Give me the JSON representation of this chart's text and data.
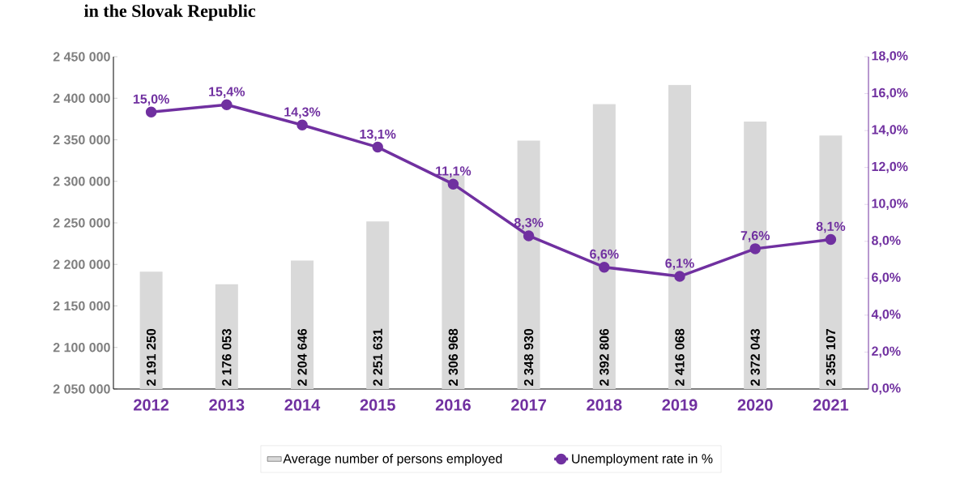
{
  "chart_data": {
    "type": "bar",
    "title": "in the Slovak Republic",
    "categories": [
      "2012",
      "2013",
      "2014",
      "2015",
      "2016",
      "2017",
      "2018",
      "2019",
      "2020",
      "2021"
    ],
    "series": [
      {
        "name": "Average number of persons employed",
        "color": "#d9d9d9",
        "values": [
          2191250,
          2176053,
          2204646,
          2251631,
          2306968,
          2348930,
          2392806,
          2416068,
          2372043,
          2355107
        ],
        "value_labels": [
          "2 191 250",
          "2 176 053",
          "2 204 646",
          "2 251 631",
          "2 306 968",
          "2 348 930",
          "2 392 806",
          "2 416 068",
          "2 372 043",
          "2 355 107"
        ]
      },
      {
        "name": "Unemployment rate in %",
        "type": "line",
        "axis": "y2",
        "color": "#7030a0",
        "values": [
          15.0,
          15.4,
          14.3,
          13.1,
          11.1,
          8.3,
          6.6,
          6.1,
          7.6,
          8.1
        ],
        "value_labels": [
          "15,0%",
          "15,4%",
          "14,3%",
          "13,1%",
          "11,1%",
          "8,3%",
          "6,6%",
          "6,1%",
          "7,6%",
          "8,1%"
        ]
      }
    ],
    "ylim": [
      2050000,
      2450000
    ],
    "yticks": [
      {
        "value": 2050000,
        "label": "2 050 000"
      },
      {
        "value": 2100000,
        "label": "2 100 000"
      },
      {
        "value": 2150000,
        "label": "2 150 000"
      },
      {
        "value": 2200000,
        "label": "2 200 000"
      },
      {
        "value": 2250000,
        "label": "2 250 000"
      },
      {
        "value": 2300000,
        "label": "2 300 000"
      },
      {
        "value": 2350000,
        "label": "2 350 000"
      },
      {
        "value": 2400000,
        "label": "2 400 000"
      },
      {
        "value": 2450000,
        "label": "2 450 000"
      }
    ],
    "y2lim": [
      0,
      18
    ],
    "y2ticks": [
      {
        "value": 0,
        "label": "0,0%"
      },
      {
        "value": 2,
        "label": "2,0%"
      },
      {
        "value": 4,
        "label": "4,0%"
      },
      {
        "value": 6,
        "label": "6,0%"
      },
      {
        "value": 8,
        "label": "8,0%"
      },
      {
        "value": 10,
        "label": "10,0%"
      },
      {
        "value": 12,
        "label": "12,0%"
      },
      {
        "value": 14,
        "label": "14,0%"
      },
      {
        "value": 16,
        "label": "16,0%"
      },
      {
        "value": 18,
        "label": "18,0%"
      }
    ],
    "legend": "bottom",
    "marker": "circle",
    "grid": false
  }
}
